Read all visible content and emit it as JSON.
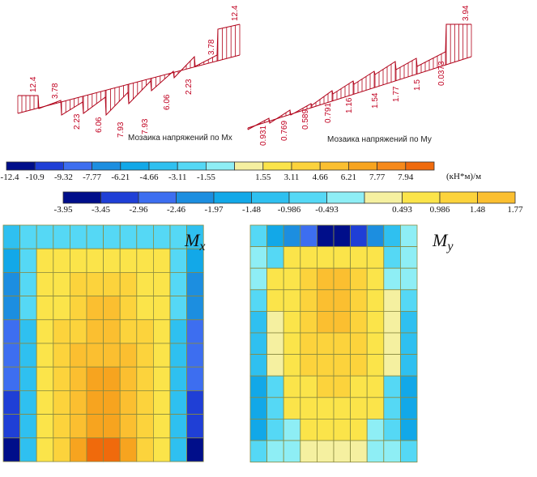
{
  "diagrams": [
    {
      "caption": "Мозаика напряжений по Мх",
      "labels": [
        "12.4",
        "3.78",
        "2.23",
        "6.06",
        "7.93",
        "7.93",
        "6.06",
        "2.23",
        "3.78",
        "12.4"
      ]
    },
    {
      "caption": "Мозаика напряжений по Му",
      "labels": [
        "0.931",
        "0.769",
        "0.589",
        "0.791",
        "1.16",
        "1.54",
        "1.77",
        "1.5",
        "0.0373",
        "3.94"
      ]
    }
  ],
  "scales": [
    {
      "name": "mx-scale",
      "colors": [
        "#000e8a",
        "#1f3fd6",
        "#3d6ef0",
        "#1c8ee0",
        "#12a8e8",
        "#2fc0f0",
        "#55d8f5",
        "#8eeef5",
        "#f5f0a0",
        "#fbe44a",
        "#fcd33c",
        "#fbbf30",
        "#f7a41f",
        "#f6891a",
        "#f06a0c"
      ],
      "ticks": [
        "-12.4",
        "-10.9",
        "-9.32",
        "-7.77",
        "-6.21",
        "-4.66",
        "-3.11",
        "-1.55",
        "1.55",
        "3.11",
        "4.66",
        "6.21",
        "7.77",
        "7.94"
      ],
      "unit": "(кН*м)/м"
    },
    {
      "name": "my-scale",
      "colors": [
        "#000e8a",
        "#1f3fd6",
        "#3d6ef0",
        "#1c8ee0",
        "#12a8e8",
        "#2fc0f0",
        "#55d8f5",
        "#8eeef5",
        "#f5f0a0",
        "#fbe44a",
        "#fcd33c",
        "#fbbf30"
      ],
      "ticks": [
        "-3.95",
        "-3.45",
        "-2.96",
        "-2.46",
        "-1.97",
        "-1.48",
        "-0.986",
        "-0.493",
        "0.493",
        "0.986",
        "1.48",
        "1.77"
      ]
    }
  ],
  "mosaics": [
    {
      "name": "mx-mosaic",
      "label": "M",
      "subscript": "x",
      "cells": [
        [
          5,
          6,
          6,
          6,
          6,
          6,
          6,
          6,
          6,
          6,
          6,
          5
        ],
        [
          4,
          6,
          9,
          9,
          9,
          9,
          9,
          9,
          9,
          9,
          6,
          4
        ],
        [
          3,
          6,
          9,
          9,
          10,
          10,
          10,
          10,
          9,
          9,
          6,
          3
        ],
        [
          3,
          6,
          9,
          9,
          10,
          11,
          11,
          10,
          9,
          9,
          6,
          3
        ],
        [
          2,
          5,
          9,
          10,
          10,
          11,
          11,
          10,
          10,
          9,
          5,
          2
        ],
        [
          2,
          5,
          9,
          10,
          11,
          11,
          11,
          11,
          10,
          9,
          5,
          2
        ],
        [
          2,
          5,
          9,
          10,
          11,
          12,
          12,
          11,
          10,
          9,
          5,
          2
        ],
        [
          1,
          5,
          9,
          10,
          11,
          12,
          12,
          11,
          10,
          9,
          5,
          1
        ],
        [
          1,
          5,
          9,
          10,
          11,
          12,
          12,
          11,
          10,
          9,
          5,
          1
        ],
        [
          0,
          5,
          9,
          10,
          12,
          14,
          14,
          12,
          10,
          9,
          5,
          0
        ]
      ]
    },
    {
      "name": "my-mosaic",
      "label": "M",
      "subscript": "y",
      "cells": [
        [
          6,
          4,
          3,
          2,
          0,
          0,
          1,
          3,
          5,
          7
        ],
        [
          7,
          6,
          9,
          9,
          9,
          9,
          9,
          9,
          6,
          7
        ],
        [
          7,
          9,
          9,
          10,
          11,
          11,
          10,
          9,
          7,
          7
        ],
        [
          6,
          9,
          9,
          10,
          11,
          11,
          10,
          9,
          8,
          6
        ],
        [
          5,
          8,
          9,
          10,
          11,
          11,
          10,
          9,
          8,
          5
        ],
        [
          5,
          8,
          9,
          10,
          10,
          10,
          10,
          9,
          8,
          5
        ],
        [
          5,
          8,
          9,
          10,
          10,
          10,
          10,
          9,
          8,
          5
        ],
        [
          4,
          6,
          9,
          9,
          10,
          10,
          9,
          9,
          6,
          4
        ],
        [
          4,
          6,
          9,
          9,
          9,
          9,
          9,
          9,
          6,
          4
        ],
        [
          4,
          6,
          7,
          9,
          9,
          9,
          9,
          7,
          6,
          4
        ],
        [
          6,
          7,
          7,
          8,
          8,
          8,
          8,
          7,
          7,
          6
        ]
      ]
    }
  ]
}
